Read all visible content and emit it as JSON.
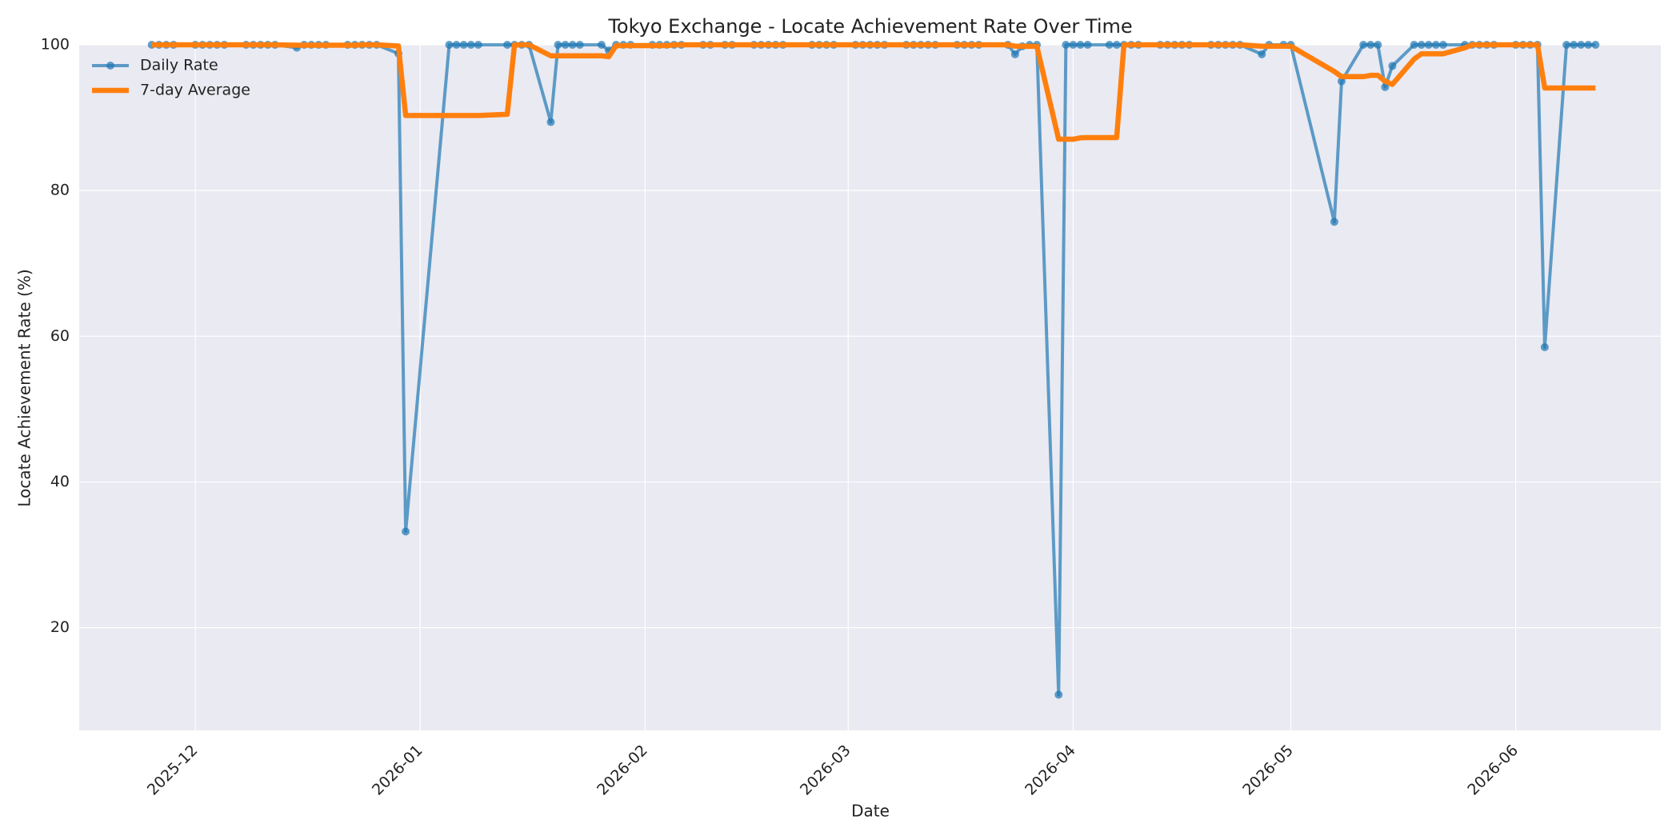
{
  "chart_data": {
    "type": "line",
    "title": "Tokyo Exchange - Locate Achievement Rate Over Time",
    "x_label": "Date",
    "y_label": "Locate Achievement Rate (%)",
    "x": [
      "2025-11-25",
      "2025-11-26",
      "2025-11-27",
      "2025-11-28",
      "2025-12-01",
      "2025-12-02",
      "2025-12-03",
      "2025-12-04",
      "2025-12-05",
      "2025-12-08",
      "2025-12-09",
      "2025-12-10",
      "2025-12-11",
      "2025-12-12",
      "2025-12-15",
      "2025-12-16",
      "2025-12-17",
      "2025-12-18",
      "2025-12-19",
      "2025-12-22",
      "2025-12-23",
      "2025-12-24",
      "2025-12-25",
      "2025-12-26",
      "2025-12-29",
      "2025-12-30",
      "2026-01-05",
      "2026-01-06",
      "2026-01-07",
      "2026-01-08",
      "2026-01-09",
      "2026-01-13",
      "2026-01-14",
      "2026-01-15",
      "2026-01-16",
      "2026-01-19",
      "2026-01-20",
      "2026-01-21",
      "2026-01-22",
      "2026-01-23",
      "2026-01-26",
      "2026-01-27",
      "2026-01-28",
      "2026-01-29",
      "2026-01-30",
      "2026-02-02",
      "2026-02-03",
      "2026-02-04",
      "2026-02-05",
      "2026-02-06",
      "2026-02-09",
      "2026-02-10",
      "2026-02-12",
      "2026-02-13",
      "2026-02-16",
      "2026-02-17",
      "2026-02-18",
      "2026-02-19",
      "2026-02-20",
      "2026-02-24",
      "2026-02-25",
      "2026-02-26",
      "2026-02-27",
      "2026-03-02",
      "2026-03-03",
      "2026-03-04",
      "2026-03-05",
      "2026-03-06",
      "2026-03-09",
      "2026-03-10",
      "2026-03-11",
      "2026-03-12",
      "2026-03-13",
      "2026-03-16",
      "2026-03-17",
      "2026-03-18",
      "2026-03-19",
      "2026-03-23",
      "2026-03-24",
      "2026-03-25",
      "2026-03-26",
      "2026-03-27",
      "2026-03-30",
      "2026-03-31",
      "2026-04-01",
      "2026-04-02",
      "2026-04-03",
      "2026-04-06",
      "2026-04-07",
      "2026-04-08",
      "2026-04-09",
      "2026-04-10",
      "2026-04-13",
      "2026-04-14",
      "2026-04-15",
      "2026-04-16",
      "2026-04-17",
      "2026-04-20",
      "2026-04-21",
      "2026-04-22",
      "2026-04-23",
      "2026-04-24",
      "2026-04-27",
      "2026-04-28",
      "2026-04-30",
      "2026-05-01",
      "2026-05-07",
      "2026-05-08",
      "2026-05-11",
      "2026-05-12",
      "2026-05-13",
      "2026-05-14",
      "2026-05-15",
      "2026-05-18",
      "2026-05-19",
      "2026-05-20",
      "2026-05-21",
      "2026-05-22",
      "2026-05-25",
      "2026-05-26",
      "2026-05-27",
      "2026-05-28",
      "2026-05-29",
      "2026-06-01",
      "2026-06-02",
      "2026-06-03",
      "2026-06-04",
      "2026-06-05",
      "2026-06-08",
      "2026-06-09",
      "2026-06-10",
      "2026-06-11",
      "2026-06-12"
    ],
    "series": [
      {
        "name": "Daily Rate",
        "color": "#1f77b4",
        "marker": true,
        "values": [
          100,
          100,
          100,
          100,
          100,
          100,
          100,
          100,
          100,
          100,
          100,
          100,
          100,
          100,
          99.6,
          100,
          100,
          100,
          100,
          100,
          100,
          100,
          100,
          100,
          98.8,
          33.2,
          100,
          100,
          100,
          100,
          100,
          100,
          100,
          100,
          100,
          89.4,
          100,
          100,
          100,
          100,
          100,
          99.2,
          100,
          100,
          100,
          100,
          100,
          100,
          100,
          100,
          100,
          100,
          100,
          100,
          100,
          100,
          100,
          100,
          100,
          100,
          100,
          100,
          100,
          100,
          100,
          100,
          100,
          100,
          100,
          100,
          100,
          100,
          100,
          100,
          100,
          100,
          100,
          100,
          98.7,
          99.8,
          100,
          100,
          10.8,
          100,
          100,
          100,
          100,
          100,
          100,
          100,
          100,
          100,
          100,
          100,
          100,
          100,
          100,
          100,
          100,
          100,
          100,
          100,
          98.7,
          100,
          100,
          100,
          75.7,
          95,
          100,
          100,
          100,
          94.2,
          97.1,
          100,
          100,
          100,
          100,
          100,
          100,
          100,
          100,
          100,
          100,
          100,
          100,
          100,
          100,
          58.5,
          100,
          100,
          100,
          100,
          100
        ]
      },
      {
        "name": "7-day Average",
        "color": "#ff7f0e",
        "marker": false,
        "values": [
          100,
          100,
          100,
          100,
          100,
          100,
          100,
          100,
          100,
          100,
          100,
          100,
          100,
          100,
          99.94,
          99.94,
          99.94,
          99.94,
          99.94,
          99.94,
          99.94,
          100,
          100,
          100,
          99.83,
          90.29,
          90.29,
          90.29,
          90.29,
          90.29,
          90.29,
          90.46,
          100,
          100,
          100,
          98.49,
          98.49,
          98.49,
          98.49,
          98.49,
          98.49,
          98.37,
          99.89,
          99.89,
          99.89,
          99.89,
          99.89,
          99.89,
          100,
          100,
          100,
          100,
          100,
          100,
          100,
          100,
          100,
          100,
          100,
          100,
          100,
          100,
          100,
          100,
          100,
          100,
          100,
          100,
          100,
          100,
          100,
          100,
          100,
          100,
          100,
          100,
          100,
          100,
          99.81,
          99.79,
          99.79,
          99.79,
          87.04,
          87.04,
          87.04,
          87.23,
          87.26,
          87.26,
          87.26,
          100,
          100,
          100,
          100,
          100,
          100,
          100,
          100,
          100,
          100,
          100,
          100,
          100,
          99.81,
          99.81,
          99.81,
          99.81,
          96.34,
          95.63,
          95.63,
          95.81,
          95.81,
          94.99,
          94.57,
          98.04,
          98.76,
          98.76,
          98.76,
          98.76,
          99.59,
          100,
          100,
          100,
          100,
          100,
          100,
          100,
          100,
          94.07,
          94.07,
          94.07,
          94.07,
          94.07,
          94.07
        ]
      }
    ],
    "xlim": [
      "2025-11-15",
      "2026-06-21"
    ],
    "xticks": [
      "2025-12",
      "2026-01",
      "2026-02",
      "2026-03",
      "2026-04",
      "2026-05",
      "2026-06"
    ],
    "ylim": [
      5.9,
      100
    ],
    "yticks": [
      20,
      40,
      60,
      80,
      100
    ],
    "grid": true,
    "legend": "upper left"
  }
}
